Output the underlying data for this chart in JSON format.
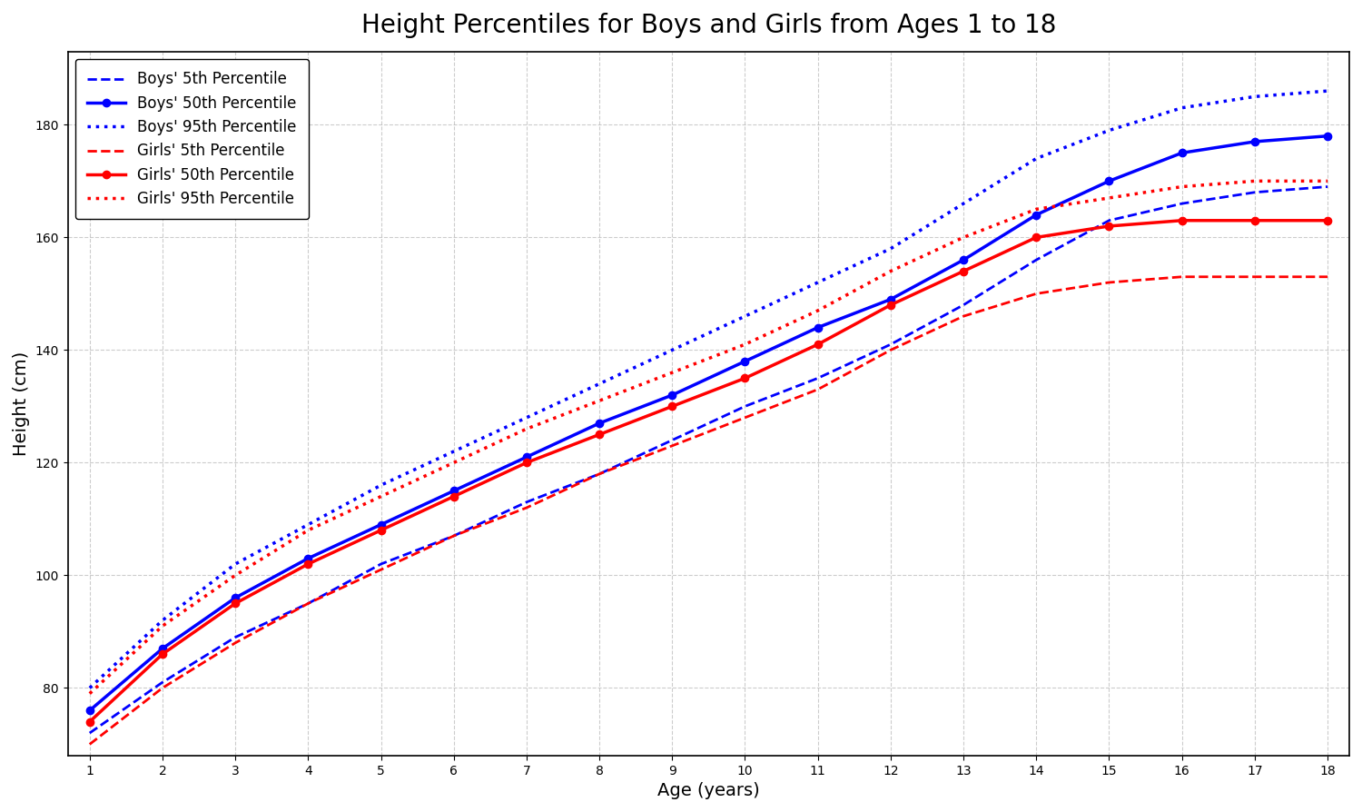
{
  "ages": [
    1,
    2,
    3,
    4,
    5,
    6,
    7,
    8,
    9,
    10,
    11,
    12,
    13,
    14,
    15,
    16,
    17,
    18
  ],
  "boys_5th": [
    72,
    81,
    89,
    95,
    102,
    107,
    113,
    118,
    124,
    130,
    135,
    141,
    148,
    156,
    163,
    166,
    168,
    169
  ],
  "boys_50th": [
    76,
    87,
    96,
    103,
    109,
    115,
    121,
    127,
    132,
    138,
    144,
    149,
    156,
    164,
    170,
    175,
    177,
    178
  ],
  "boys_95th": [
    80,
    92,
    102,
    109,
    116,
    122,
    128,
    134,
    140,
    146,
    152,
    158,
    166,
    174,
    179,
    183,
    185,
    186
  ],
  "girls_5th": [
    70,
    80,
    88,
    95,
    101,
    107,
    112,
    118,
    123,
    128,
    133,
    140,
    146,
    150,
    152,
    153,
    153,
    153
  ],
  "girls_50th": [
    74,
    86,
    95,
    102,
    108,
    114,
    120,
    125,
    130,
    135,
    141,
    148,
    154,
    160,
    162,
    163,
    163,
    163
  ],
  "girls_95th": [
    79,
    91,
    100,
    108,
    114,
    120,
    126,
    131,
    136,
    141,
    147,
    154,
    160,
    165,
    167,
    169,
    170,
    170
  ],
  "title": "Height Percentiles for Boys and Girls from Ages 1 to 18",
  "xlabel": "Age (years)",
  "ylabel": "Height (cm)",
  "boy_color": "blue",
  "girl_color": "red",
  "ylim": [
    68,
    193
  ],
  "xlim": [
    1,
    18
  ],
  "yticks": [
    80,
    100,
    120,
    140,
    160,
    180
  ]
}
